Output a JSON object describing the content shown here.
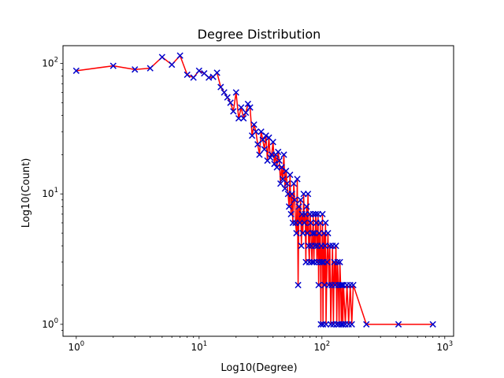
{
  "chart_data": {
    "type": "line",
    "title": "Degree Distribution",
    "xlabel": "Log10(Degree)",
    "ylabel": "Log10(Count)",
    "x_scale": "log",
    "y_scale": "log",
    "xlim": [
      0.78,
      1180
    ],
    "ylim": [
      0.81,
      137
    ],
    "x_ticks": [
      {
        "value": 1,
        "base": "10",
        "exp": "0"
      },
      {
        "value": 10,
        "base": "10",
        "exp": "1"
      },
      {
        "value": 100,
        "base": "10",
        "exp": "2"
      },
      {
        "value": 1000,
        "base": "10",
        "exp": "3"
      }
    ],
    "y_ticks": [
      {
        "value": 1,
        "base": "10",
        "exp": "0"
      },
      {
        "value": 10,
        "base": "10",
        "exp": "1"
      },
      {
        "value": 100,
        "base": "10",
        "exp": "2"
      }
    ],
    "grid": false,
    "line_color": "#ff0000",
    "marker": "x",
    "marker_color": "#0000cc",
    "series": [
      {
        "x": [
          1,
          2,
          3,
          4,
          5,
          6,
          7,
          8,
          9,
          10,
          11,
          12,
          13,
          14,
          15,
          16,
          17,
          18,
          19,
          20,
          21,
          22,
          23,
          24,
          25,
          26,
          27,
          28,
          29,
          30,
          31,
          32,
          33,
          34,
          35,
          36,
          37,
          38,
          39,
          40,
          41,
          42,
          43,
          44,
          45,
          46,
          47,
          48,
          49,
          50,
          51,
          52,
          53,
          54,
          55,
          56,
          57,
          58,
          59,
          60,
          61,
          62,
          63,
          64,
          65,
          66,
          67,
          68,
          69,
          70,
          71,
          72,
          73,
          74,
          75,
          76,
          77,
          78,
          79,
          80,
          81,
          82,
          83,
          84,
          85,
          86,
          87,
          88,
          89,
          90,
          91,
          92,
          93,
          94,
          95,
          96,
          97,
          98,
          99,
          100,
          101,
          102,
          103,
          104,
          105,
          106,
          107,
          108,
          110,
          112,
          114,
          116,
          118,
          120,
          122,
          124,
          126,
          128,
          130,
          132,
          134,
          136,
          138,
          140,
          142,
          144,
          146,
          148,
          150,
          155,
          160,
          165,
          170,
          175,
          180,
          230,
          420,
          800
        ],
        "y": [
          88,
          96,
          90,
          92,
          112,
          98,
          115,
          82,
          78,
          88,
          84,
          78,
          79,
          85,
          66,
          60,
          55,
          50,
          43,
          60,
          38,
          46,
          38,
          42,
          49,
          46,
          28,
          34,
          30,
          24,
          20,
          30,
          26,
          22,
          28,
          18,
          27,
          19,
          20,
          25,
          17,
          20,
          16,
          21,
          18,
          12,
          16,
          13,
          20,
          11,
          15,
          12,
          10,
          8,
          14,
          7,
          10,
          6,
          12,
          9,
          6,
          5,
          13,
          2,
          8,
          6,
          9,
          4,
          7,
          5,
          10,
          6,
          7,
          3,
          8,
          5,
          10,
          4,
          3,
          7,
          6,
          4,
          3,
          5,
          7,
          3,
          5,
          4,
          7,
          6,
          3,
          4,
          7,
          2,
          5,
          3,
          6,
          1,
          4,
          3,
          7,
          1,
          3,
          5,
          2,
          4,
          6,
          1,
          3,
          5,
          2,
          4,
          1,
          2,
          4,
          1,
          3,
          2,
          4,
          1,
          3,
          2,
          1,
          3,
          2,
          1,
          2,
          1,
          2,
          1,
          2,
          1,
          2,
          1,
          2,
          1,
          1,
          1
        ]
      }
    ]
  }
}
